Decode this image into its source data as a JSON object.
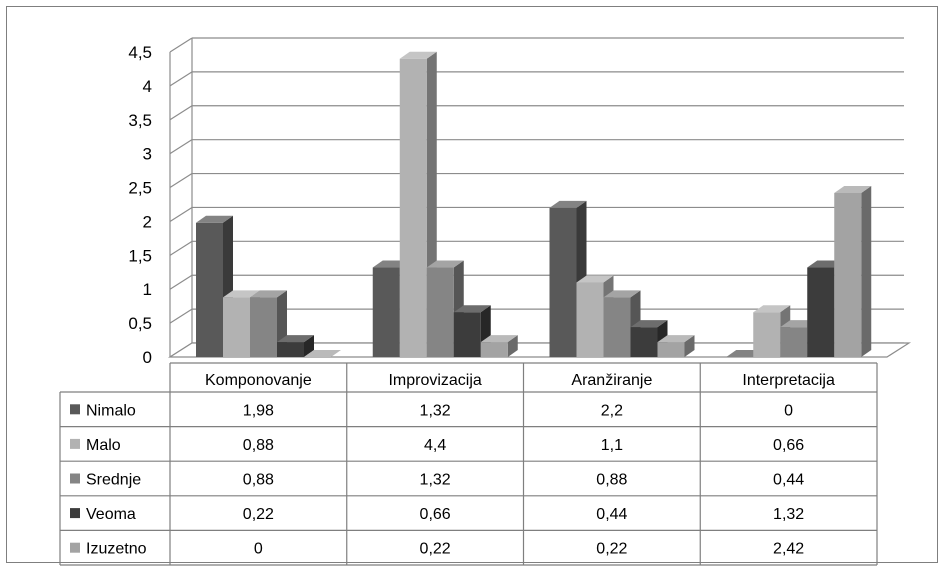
{
  "chart_data": {
    "type": "bar",
    "title": "",
    "xlabel": "",
    "ylabel": "",
    "ylim": [
      0,
      4.5
    ],
    "y_ticks": [
      "0",
      "0,5",
      "1",
      "1,5",
      "2",
      "2,5",
      "3",
      "3,5",
      "4",
      "4,5"
    ],
    "grid": true,
    "three_d": true,
    "legend": "data-table-left",
    "categories": [
      "Komponovanje",
      "Improvizacija",
      "Aranžiranje",
      "Interpretacija"
    ],
    "series": [
      {
        "name": "Nimalo",
        "color": "#595959",
        "values": [
          1.98,
          1.32,
          2.2,
          0
        ],
        "labels": [
          "1,98",
          "1,32",
          "2,2",
          "0"
        ]
      },
      {
        "name": "Malo",
        "color": "#b2b2b2",
        "values": [
          0.88,
          4.4,
          1.1,
          0.66
        ],
        "labels": [
          "0,88",
          "4,4",
          "1,1",
          "0,66"
        ]
      },
      {
        "name": "Srednje",
        "color": "#858585",
        "values": [
          0.88,
          1.32,
          0.88,
          0.44
        ],
        "labels": [
          "0,88",
          "1,32",
          "0,88",
          "0,44"
        ]
      },
      {
        "name": "Veoma",
        "color": "#3c3c3c",
        "values": [
          0.22,
          0.66,
          0.44,
          1.32
        ],
        "labels": [
          "0,22",
          "0,66",
          "0,44",
          "1,32"
        ]
      },
      {
        "name": "Izuzetno",
        "color": "#a3a3a3",
        "values": [
          0,
          0.22,
          0.22,
          2.42
        ],
        "labels": [
          "0",
          "0,22",
          "0,22",
          "2,42"
        ]
      }
    ]
  }
}
